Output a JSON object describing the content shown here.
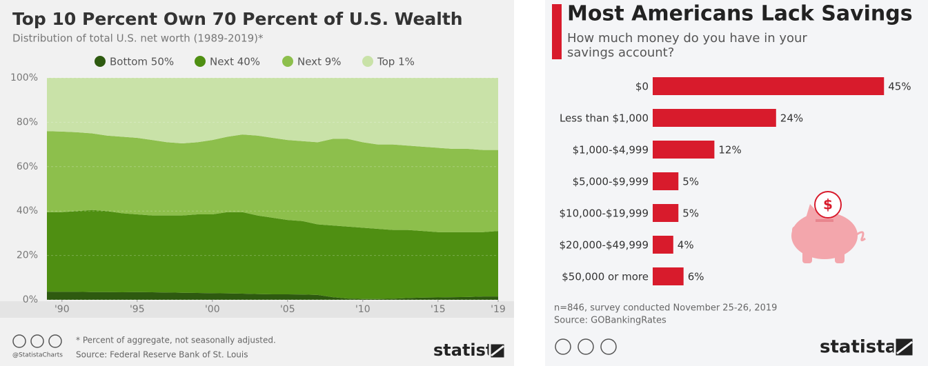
{
  "chart_data": [
    {
      "type": "area",
      "title": "Top 10 Percent Own 70 Percent of U.S. Wealth",
      "subtitle": "Distribution of total U.S. net worth (1989-2019)*",
      "x": [
        1989,
        1990,
        1991,
        1992,
        1993,
        1994,
        1995,
        1996,
        1997,
        1998,
        1999,
        2000,
        2001,
        2002,
        2003,
        2004,
        2005,
        2006,
        2007,
        2008,
        2009,
        2010,
        2011,
        2012,
        2013,
        2014,
        2015,
        2016,
        2017,
        2018,
        2019
      ],
      "series": [
        {
          "name": "Bottom 50%",
          "color": "#2e5a10",
          "values": [
            3.7,
            3.6,
            3.6,
            3.5,
            3.5,
            3.4,
            3.5,
            3.4,
            3.3,
            3.2,
            3.1,
            3.0,
            2.9,
            2.8,
            2.6,
            2.5,
            2.5,
            2.4,
            2.2,
            1.2,
            0.6,
            0.4,
            0.4,
            0.5,
            0.8,
            1.0,
            1.1,
            1.2,
            1.3,
            1.5,
            1.5
          ]
        },
        {
          "name": "Next 40%",
          "color": "#4f8f12",
          "values": [
            35.8,
            35.9,
            36.4,
            37,
            36.5,
            35.6,
            35,
            34.6,
            34.7,
            34.8,
            35.4,
            35.5,
            36.6,
            36.7,
            35.4,
            34.5,
            33.5,
            33.1,
            31.8,
            32.3,
            32.4,
            32.1,
            31.6,
            31,
            30.7,
            30,
            29.4,
            29.3,
            29.2,
            29,
            29.5
          ]
        },
        {
          "name": "Next 9%",
          "color": "#8dbf4c",
          "values": [
            36.5,
            36.3,
            35.5,
            34.5,
            34,
            34.5,
            34.5,
            34,
            33,
            32.5,
            32.5,
            33.5,
            34,
            35,
            36,
            36,
            36,
            36,
            37,
            39,
            39.5,
            38.5,
            38,
            38.5,
            38,
            38,
            38,
            37.5,
            37.5,
            37,
            36.5
          ]
        },
        {
          "name": "Top 1%",
          "color": "#c9e2a8",
          "values": [
            24,
            24.2,
            24.5,
            25,
            26,
            26.5,
            27,
            28,
            29,
            29.5,
            29,
            28,
            26.5,
            25.5,
            26,
            27,
            28,
            28.5,
            29,
            27.5,
            27.5,
            29,
            30,
            30,
            30.5,
            31,
            31.5,
            32,
            32,
            32.5,
            32.5
          ]
        }
      ],
      "xlim": [
        1989,
        2019
      ],
      "xticks": [
        {
          "value": 1990,
          "label": "'90"
        },
        {
          "value": 1995,
          "label": "'95"
        },
        {
          "value": 2000,
          "label": "'00"
        },
        {
          "value": 2005,
          "label": "'05"
        },
        {
          "value": 2010,
          "label": "'10"
        },
        {
          "value": 2015,
          "label": "'15"
        },
        {
          "value": 2019,
          "label": "'19"
        }
      ],
      "ylim": [
        0,
        100
      ],
      "yticks": [
        {
          "value": 0,
          "label": "0%"
        },
        {
          "value": 20,
          "label": "20%"
        },
        {
          "value": 40,
          "label": "40%"
        },
        {
          "value": 60,
          "label": "60%"
        },
        {
          "value": 80,
          "label": "80%"
        },
        {
          "value": 100,
          "label": "100%"
        }
      ],
      "stacked": true,
      "grid": true,
      "note": "* Percent of aggregate, not seasonally adjusted.",
      "source": "Source: Federal Reserve Bank of St. Louis",
      "credit": "@StatistaCharts",
      "brand": "statista"
    },
    {
      "type": "bar",
      "horizontal": true,
      "title": "Most Americans Lack Savings",
      "subtitle": "How much money do you have in your savings account?",
      "categories": [
        "$0",
        "Less than $1,000",
        "$1,000-$4,999",
        "$5,000-$9,999",
        "$10,000-$19,999",
        "$20,000-$49,999",
        "$50,000 or more"
      ],
      "values": [
        45,
        24,
        12,
        5,
        5,
        4,
        6
      ],
      "value_labels": [
        "45%",
        "24%",
        "12%",
        "5%",
        "5%",
        "4%",
        "6%"
      ],
      "color": "#d81b2c",
      "icon_symbol": "$",
      "note": "n=846, survey conducted November 25-26, 2019",
      "source": "Source: GOBankingRates",
      "brand": "statista"
    }
  ]
}
